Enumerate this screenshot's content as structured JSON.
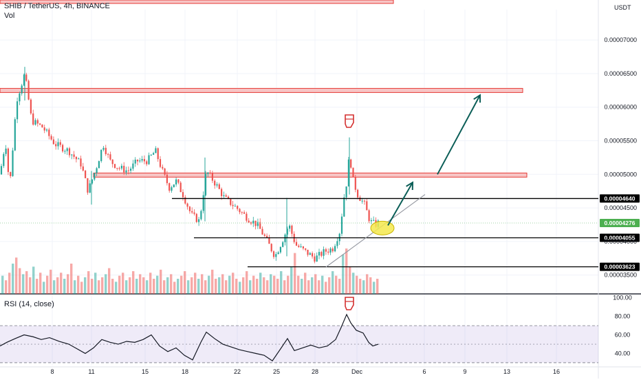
{
  "header": {
    "title": "SHIB / TetherUS, 4h, BINANCE",
    "volume_label": "Vol",
    "rsi_label": "RSI (14, close)",
    "currency": "USDT"
  },
  "chart_data": [
    {
      "type": "candlestick",
      "title": "SHIB / TetherUS, 4h, BINANCE",
      "y_ticks": [
        "0.00007000",
        "0.00006500",
        "0.00006000",
        "0.00005500",
        "0.00005000",
        "0.00004500",
        "0.00004000",
        "0.00003500"
      ],
      "y_tick_values": [
        7e-05,
        6.5e-05,
        6e-05,
        5.5e-05,
        5e-05,
        4.5e-05,
        4e-05,
        3.5e-05
      ],
      "x_ticks": [
        "8",
        "11",
        "15",
        "18",
        "22",
        "25",
        "28",
        "Dec",
        "6",
        "9",
        "13",
        "16"
      ],
      "ylim": [
        3.23e-05,
        7.35e-05
      ],
      "price_path": [
        [
          0,
          5e-05
        ],
        [
          8,
          5.5e-05
        ],
        [
          14,
          4.8e-05
        ],
        [
          24,
          6.1e-05
        ],
        [
          36,
          6.5e-05
        ],
        [
          46,
          5.8e-05
        ],
        [
          62,
          5.7e-05
        ],
        [
          80,
          5.45e-05
        ],
        [
          100,
          5.35e-05
        ],
        [
          118,
          5.15e-05
        ],
        [
          128,
          4.75e-05
        ],
        [
          140,
          5.1e-05
        ],
        [
          150,
          5.45e-05
        ],
        [
          160,
          5.2e-05
        ],
        [
          172,
          5.1e-05
        ],
        [
          186,
          5.05e-05
        ],
        [
          200,
          5.2e-05
        ],
        [
          214,
          5.2e-05
        ],
        [
          226,
          5.35e-05
        ],
        [
          236,
          5.05e-05
        ],
        [
          246,
          4.8e-05
        ],
        [
          256,
          4.9e-05
        ],
        [
          266,
          4.7e-05
        ],
        [
          278,
          4.4e-05
        ],
        [
          290,
          4.3e-05
        ],
        [
          300,
          5.05e-05
        ],
        [
          314,
          4.85e-05
        ],
        [
          326,
          4.65e-05
        ],
        [
          344,
          4.5e-05
        ],
        [
          360,
          4.35e-05
        ],
        [
          374,
          4.25e-05
        ],
        [
          386,
          4.05e-05
        ],
        [
          400,
          3.78e-05
        ],
        [
          412,
          4.05e-05
        ],
        [
          420,
          4.25e-05
        ],
        [
          430,
          3.95e-05
        ],
        [
          444,
          3.85e-05
        ],
        [
          458,
          3.75e-05
        ],
        [
          472,
          3.85e-05
        ],
        [
          484,
          3.9e-05
        ],
        [
          494,
          4.15e-05
        ],
        [
          500,
          4.65e-05
        ],
        [
          506,
          5e-05
        ],
        [
          508,
          5.4e-05
        ],
        [
          512,
          4.95e-05
        ],
        [
          520,
          4.7e-05
        ],
        [
          530,
          4.55e-05
        ],
        [
          538,
          4.3e-05
        ],
        [
          546,
          4.25e-05
        ],
        [
          550,
          4.28e-05
        ]
      ],
      "resistance_zones": [
        {
          "from": 6.22e-05,
          "to": 6.28e-05
        },
        {
          "from": 4.96e-05,
          "to": 5.02e-05
        }
      ],
      "levels": [
        {
          "label": "0.00004640",
          "value": 4.64e-05,
          "color": "#000000"
        },
        {
          "label": "0.00004276",
          "value": 4.276e-05,
          "color": "#4caf50"
        },
        {
          "label": "0.00004055",
          "value": 4.055e-05,
          "color": "#000000"
        },
        {
          "label": "0.00003623",
          "value": 3.623e-05,
          "color": "#000000"
        }
      ],
      "projection": {
        "arrow_up_small": [
          [
            4.2e-05
          ],
          [
            4.88e-05
          ]
        ],
        "arrow_up_large": [
          [
            5e-05
          ],
          [
            6.18e-05
          ]
        ]
      },
      "colors": {
        "up": "#26a69a",
        "down": "#ef5350",
        "zone_fill": "#f7c5c5",
        "zone_border": "#e53935",
        "arrow": "#0b5e57",
        "circle": "#f5e94e"
      }
    },
    {
      "type": "line",
      "title": "RSI (14, close)",
      "y_ticks": [
        "100.00",
        "80.00",
        "60.00",
        "40.00"
      ],
      "y_tick_values": [
        100,
        80,
        60,
        40
      ],
      "ylim": [
        27,
        102
      ],
      "band": [
        30,
        70
      ],
      "midline": 50,
      "values": [
        [
          0,
          48
        ],
        [
          10,
          52
        ],
        [
          22,
          56
        ],
        [
          35,
          60
        ],
        [
          48,
          58
        ],
        [
          60,
          55
        ],
        [
          72,
          57
        ],
        [
          86,
          53
        ],
        [
          100,
          50
        ],
        [
          112,
          45
        ],
        [
          124,
          40
        ],
        [
          136,
          46
        ],
        [
          148,
          55
        ],
        [
          160,
          52
        ],
        [
          172,
          50
        ],
        [
          184,
          53
        ],
        [
          196,
          52
        ],
        [
          208,
          55
        ],
        [
          220,
          60
        ],
        [
          232,
          48
        ],
        [
          244,
          42
        ],
        [
          256,
          46
        ],
        [
          268,
          38
        ],
        [
          280,
          33
        ],
        [
          292,
          52
        ],
        [
          300,
          63
        ],
        [
          312,
          56
        ],
        [
          324,
          50
        ],
        [
          336,
          47
        ],
        [
          348,
          44
        ],
        [
          360,
          42
        ],
        [
          372,
          40
        ],
        [
          384,
          38
        ],
        [
          396,
          32
        ],
        [
          408,
          45
        ],
        [
          418,
          56
        ],
        [
          428,
          43
        ],
        [
          440,
          46
        ],
        [
          452,
          49
        ],
        [
          464,
          46
        ],
        [
          476,
          48
        ],
        [
          488,
          55
        ],
        [
          496,
          68
        ],
        [
          504,
          82
        ],
        [
          510,
          73
        ],
        [
          518,
          65
        ],
        [
          528,
          62
        ],
        [
          536,
          52
        ],
        [
          542,
          48
        ],
        [
          550,
          50
        ]
      ]
    }
  ],
  "volume": {
    "bars": [
      12,
      9,
      14,
      20,
      24,
      17,
      13,
      15,
      11,
      18,
      10,
      14,
      8,
      12,
      16,
      9,
      11,
      14,
      10,
      13,
      20,
      9,
      12,
      8,
      11,
      15,
      10,
      14,
      9,
      11,
      13,
      17,
      10,
      8,
      12,
      14,
      9,
      11,
      15,
      10,
      13,
      11,
      9,
      14,
      10,
      12,
      16,
      9,
      11,
      13,
      8,
      10,
      12,
      15,
      9,
      11,
      14,
      10,
      13,
      9,
      12,
      16,
      10,
      11,
      13,
      9,
      12,
      14,
      10,
      8,
      11,
      15,
      9,
      12,
      10,
      14,
      11,
      9,
      13,
      12,
      10,
      15,
      9,
      12,
      18,
      27,
      12,
      10,
      14,
      9,
      11,
      13,
      9,
      12,
      8,
      11,
      15,
      12,
      10,
      26,
      30,
      18,
      14,
      12,
      10,
      9,
      13,
      11,
      8,
      10
    ]
  }
}
